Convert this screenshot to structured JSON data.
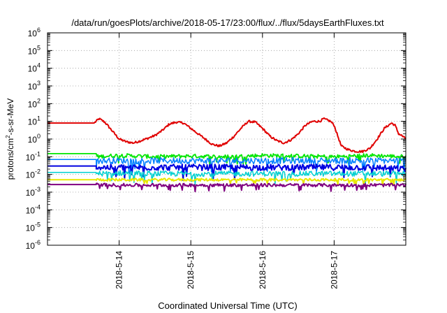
{
  "chart_data": {
    "type": "line",
    "title": "/data/run/goesPlots/archive/2018-05-17/23:00/flux/../flux/5daysEarthFluxes.txt",
    "xlabel": "Coordinated Universal Time (UTC)",
    "ylabel": "protons/cm2-s-sr-MeV",
    "ylabel_parts": {
      "base": "protons/cm",
      "sup": "2",
      "rest": "-s-sr-MeV"
    },
    "yscale": "log",
    "ylim_exponents": [
      -6,
      6
    ],
    "y_tick_base": "10",
    "y_tick_exponents": [
      "6",
      "5",
      "4",
      "3",
      "2",
      "1",
      "0",
      "-1",
      "-2",
      "-3",
      "-4",
      "-5",
      "-6"
    ],
    "xlim_days": [
      0,
      5
    ],
    "x_ticks": [
      {
        "day": 1,
        "label": "2018-5-14"
      },
      {
        "day": 2,
        "label": "2018-5-15"
      },
      {
        "day": 3,
        "label": "2018-5-16"
      },
      {
        "day": 4,
        "label": "2018-5-17"
      }
    ],
    "grid": true,
    "series": [
      {
        "color": "#e00000",
        "width": 2.0,
        "points": [
          [
            0,
            8
          ],
          [
            0.65,
            8
          ],
          [
            0.72,
            14
          ],
          [
            0.8,
            9
          ],
          [
            0.9,
            3
          ],
          [
            1.0,
            1
          ],
          [
            1.1,
            0.7
          ],
          [
            1.2,
            0.6
          ],
          [
            1.3,
            0.8
          ],
          [
            1.4,
            1.1
          ],
          [
            1.5,
            1.6
          ],
          [
            1.6,
            3
          ],
          [
            1.7,
            7
          ],
          [
            1.8,
            9
          ],
          [
            1.9,
            8
          ],
          [
            2.0,
            4
          ],
          [
            2.1,
            2
          ],
          [
            2.2,
            1
          ],
          [
            2.3,
            0.5
          ],
          [
            2.4,
            0.4
          ],
          [
            2.5,
            0.6
          ],
          [
            2.6,
            1.4
          ],
          [
            2.7,
            4
          ],
          [
            2.8,
            10
          ],
          [
            2.9,
            9
          ],
          [
            3.0,
            4
          ],
          [
            3.1,
            1.5
          ],
          [
            3.2,
            0.8
          ],
          [
            3.3,
            0.6
          ],
          [
            3.4,
            0.9
          ],
          [
            3.5,
            2
          ],
          [
            3.6,
            6
          ],
          [
            3.7,
            10
          ],
          [
            3.8,
            10
          ],
          [
            3.85,
            14
          ],
          [
            3.95,
            10
          ],
          [
            4.0,
            6
          ],
          [
            4.05,
            1.5
          ],
          [
            4.1,
            0.4
          ],
          [
            4.2,
            0.25
          ],
          [
            4.3,
            0.2
          ],
          [
            4.4,
            0.2
          ],
          [
            4.5,
            0.3
          ],
          [
            4.6,
            1
          ],
          [
            4.7,
            4
          ],
          [
            4.8,
            8
          ],
          [
            4.85,
            6
          ],
          [
            4.9,
            2
          ],
          [
            4.95,
            1.5
          ],
          [
            5.0,
            1.0
          ]
        ]
      },
      {
        "color": "#00e600",
        "width": 1.8,
        "points": [
          [
            0,
            0.15
          ],
          [
            0.68,
            0.15
          ],
          [
            0.68,
            0.1
          ],
          [
            1.0,
            0.12
          ],
          [
            1.5,
            0.1
          ],
          [
            2.0,
            0.11
          ],
          [
            2.5,
            0.1
          ],
          [
            3.0,
            0.12
          ],
          [
            3.5,
            0.11
          ],
          [
            4.0,
            0.1
          ],
          [
            4.5,
            0.12
          ],
          [
            5.0,
            0.1
          ]
        ]
      },
      {
        "color": "#0080ff",
        "width": 1.5,
        "points": [
          [
            0,
            0.07
          ],
          [
            0.68,
            0.07
          ],
          [
            0.68,
            0.06
          ],
          [
            1.0,
            0.06
          ],
          [
            1.5,
            0.06
          ],
          [
            2.0,
            0.06
          ],
          [
            2.5,
            0.06
          ],
          [
            3.0,
            0.06
          ],
          [
            3.5,
            0.06
          ],
          [
            4.0,
            0.06
          ],
          [
            4.5,
            0.06
          ],
          [
            5.0,
            0.06
          ]
        ]
      },
      {
        "color": "#0000e0",
        "width": 2.0,
        "points": [
          [
            0,
            0.03
          ],
          [
            0.68,
            0.03
          ],
          [
            0.68,
            0.025
          ],
          [
            1.0,
            0.025
          ],
          [
            1.5,
            0.025
          ],
          [
            2.0,
            0.025
          ],
          [
            2.5,
            0.025
          ],
          [
            3.0,
            0.025
          ],
          [
            3.5,
            0.025
          ],
          [
            4.0,
            0.025
          ],
          [
            4.5,
            0.025
          ],
          [
            5.0,
            0.02
          ]
        ]
      },
      {
        "color": "#00d0d0",
        "width": 1.5,
        "points": [
          [
            0,
            0.013
          ],
          [
            0.68,
            0.013
          ],
          [
            0.68,
            0.011
          ],
          [
            1.0,
            0.012
          ],
          [
            1.5,
            0.011
          ],
          [
            2.0,
            0.011
          ],
          [
            2.5,
            0.011
          ],
          [
            3.0,
            0.011
          ],
          [
            3.5,
            0.011
          ],
          [
            4.0,
            0.011
          ],
          [
            4.5,
            0.011
          ],
          [
            5.0,
            0.011
          ]
        ]
      },
      {
        "color": "#e8e800",
        "width": 2.0,
        "points": [
          [
            0,
            0.005
          ],
          [
            0.68,
            0.005
          ],
          [
            1.0,
            0.005
          ],
          [
            2.0,
            0.005
          ],
          [
            3.0,
            0.005
          ],
          [
            4.0,
            0.005
          ],
          [
            5.0,
            0.005
          ]
        ]
      },
      {
        "color": "#800080",
        "width": 2.0,
        "points": [
          [
            0,
            0.0027
          ],
          [
            0.68,
            0.0027
          ],
          [
            1.0,
            0.0025
          ],
          [
            2.0,
            0.0025
          ],
          [
            3.0,
            0.0025
          ],
          [
            4.0,
            0.0025
          ],
          [
            5.0,
            0.0025
          ]
        ]
      }
    ]
  }
}
